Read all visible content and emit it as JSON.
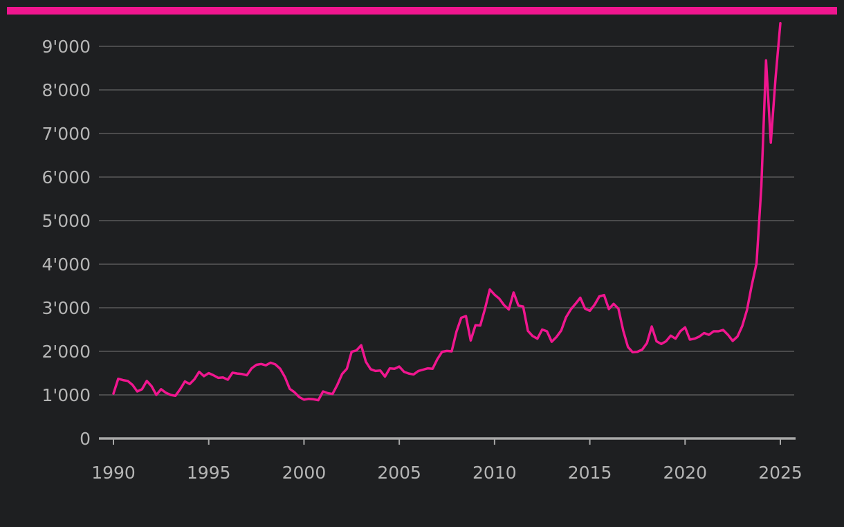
{
  "colors": {
    "background": "#1e1f21",
    "accent": "#f0168f",
    "grid": "#5a5a5a",
    "axis": "#a8a8a8",
    "tick_text": "#b5b5b5"
  },
  "chart_data": {
    "type": "line",
    "title": "",
    "xlabel": "",
    "ylabel": "",
    "xlim": [
      1990,
      2025
    ],
    "ylim": [
      0,
      9000
    ],
    "x_ticks": [
      1990,
      1995,
      2000,
      2005,
      2010,
      2015,
      2020,
      2025
    ],
    "x_tick_labels": [
      "1990",
      "1995",
      "2000",
      "2005",
      "2010",
      "2015",
      "2020",
      "2025"
    ],
    "y_ticks": [
      0,
      1000,
      2000,
      3000,
      4000,
      5000,
      6000,
      7000,
      8000,
      9000
    ],
    "y_tick_labels": [
      "0",
      "1'000",
      "2'000",
      "3'000",
      "4'000",
      "5'000",
      "6'000",
      "7'000",
      "8'000",
      "9'000"
    ],
    "grid": true,
    "legend": "none",
    "series": [
      {
        "color": "#f0168f",
        "x": [
          1990.0,
          1990.25,
          1990.5,
          1990.75,
          1991.0,
          1991.25,
          1991.5,
          1991.75,
          1992.0,
          1992.25,
          1992.5,
          1992.75,
          1993.0,
          1993.25,
          1993.5,
          1993.75,
          1994.0,
          1994.25,
          1994.5,
          1994.75,
          1995.0,
          1995.25,
          1995.5,
          1995.75,
          1996.0,
          1996.25,
          1996.5,
          1996.75,
          1997.0,
          1997.25,
          1997.5,
          1997.75,
          1998.0,
          1998.25,
          1998.5,
          1998.75,
          1999.0,
          1999.25,
          1999.5,
          1999.75,
          2000.0,
          2000.25,
          2000.5,
          2000.75,
          2001.0,
          2001.25,
          2001.5,
          2001.75,
          2002.0,
          2002.25,
          2002.5,
          2002.75,
          2003.0,
          2003.25,
          2003.5,
          2003.75,
          2004.0,
          2004.25,
          2004.5,
          2004.75,
          2005.0,
          2005.25,
          2005.5,
          2005.75,
          2006.0,
          2006.25,
          2006.5,
          2006.75,
          2007.0,
          2007.25,
          2007.5,
          2007.75,
          2008.0,
          2008.25,
          2008.5,
          2008.75,
          2009.0,
          2009.25,
          2009.5,
          2009.75,
          2010.0,
          2010.25,
          2010.5,
          2010.75,
          2011.0,
          2011.25,
          2011.5,
          2011.75,
          2012.0,
          2012.25,
          2012.5,
          2012.75,
          2013.0,
          2013.25,
          2013.5,
          2013.75,
          2014.0,
          2014.25,
          2014.5,
          2014.75,
          2015.0,
          2015.25,
          2015.5,
          2015.75,
          2016.0,
          2016.25,
          2016.5,
          2016.75,
          2017.0,
          2017.25,
          2017.5,
          2017.75,
          2018.0,
          2018.25,
          2018.5,
          2018.75,
          2019.0,
          2019.25,
          2019.5,
          2019.75,
          2020.0,
          2020.25,
          2020.5,
          2020.75,
          2021.0,
          2021.25,
          2021.5,
          2021.75,
          2022.0,
          2022.25,
          2022.5,
          2022.75,
          2023.0,
          2023.25,
          2023.5,
          2023.75,
          2024.0,
          2024.25,
          2024.5,
          2024.75,
          2025.0
        ],
        "y": [
          1030,
          1370,
          1340,
          1320,
          1230,
          1080,
          1130,
          1320,
          1200,
          1000,
          1130,
          1050,
          1000,
          980,
          1130,
          1310,
          1250,
          1360,
          1530,
          1430,
          1500,
          1450,
          1390,
          1400,
          1350,
          1510,
          1490,
          1480,
          1450,
          1610,
          1690,
          1710,
          1680,
          1740,
          1700,
          1600,
          1410,
          1140,
          1060,
          950,
          890,
          910,
          900,
          880,
          1080,
          1040,
          1020,
          1230,
          1480,
          1600,
          1990,
          2020,
          2140,
          1760,
          1590,
          1550,
          1560,
          1420,
          1610,
          1600,
          1650,
          1530,
          1490,
          1470,
          1550,
          1580,
          1610,
          1600,
          1820,
          1990,
          2010,
          2000,
          2450,
          2770,
          2810,
          2250,
          2600,
          2590,
          2980,
          3420,
          3300,
          3210,
          3060,
          2960,
          3350,
          3050,
          3030,
          2470,
          2350,
          2290,
          2500,
          2460,
          2220,
          2330,
          2480,
          2780,
          2960,
          3090,
          3230,
          2980,
          2930,
          3070,
          3260,
          3290,
          2970,
          3090,
          2980,
          2480,
          2100,
          1980,
          1990,
          2040,
          2190,
          2570,
          2230,
          2170,
          2230,
          2360,
          2290,
          2460,
          2550,
          2270,
          2290,
          2340,
          2420,
          2380,
          2460,
          2460,
          2490,
          2380,
          2240,
          2340,
          2580,
          2950,
          3520,
          4020,
          5780,
          8680,
          6790,
          8280,
          9530
        ]
      }
    ]
  }
}
